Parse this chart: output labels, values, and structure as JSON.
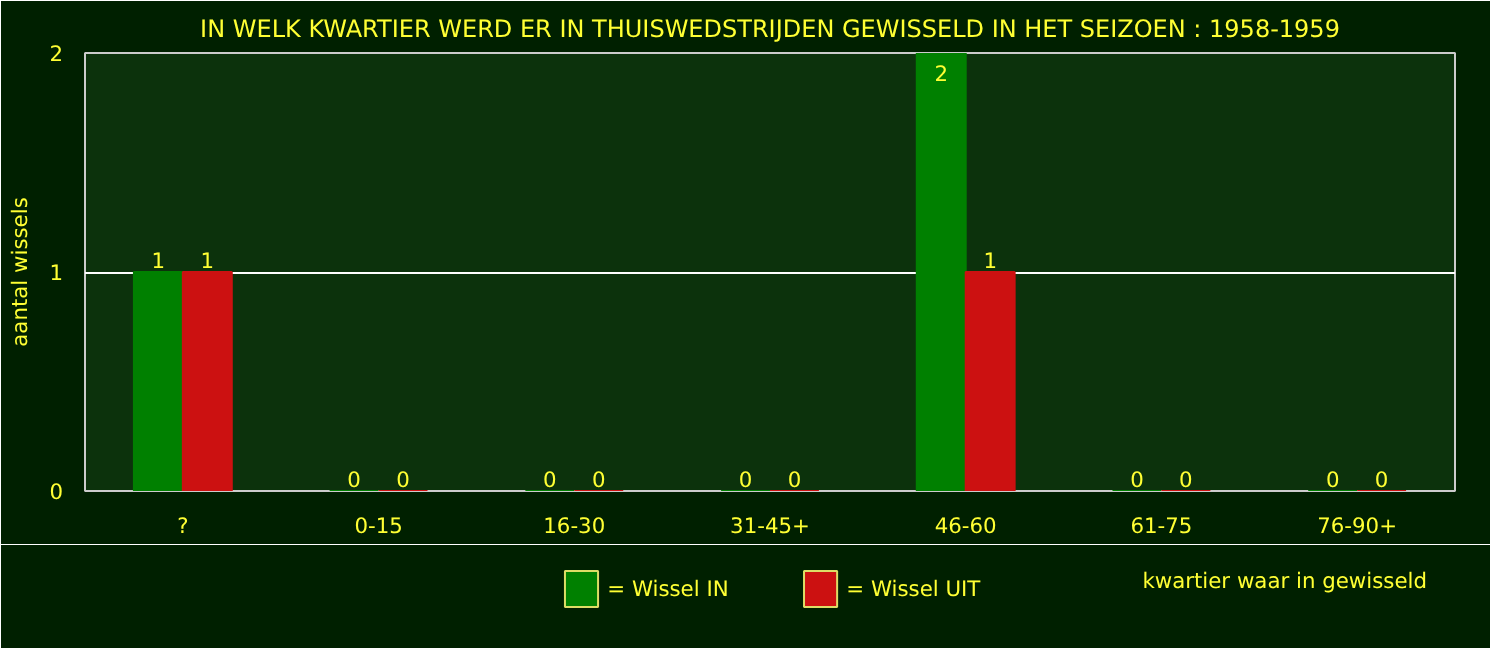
{
  "chart_data": {
    "type": "bar",
    "title": "IN WELK KWARTIER WERD ER IN THUISWEDSTRIJDEN GEWISSELD IN HET SEIZOEN : 1958-1959",
    "xlabel": "kwartier waar in gewisseld",
    "ylabel": "aantal wissels",
    "categories": [
      "?",
      "0-15",
      "16-30",
      "31-45+",
      "46-60",
      "61-75",
      "76-90+"
    ],
    "series": [
      {
        "name": "= Wissel IN",
        "color": "#008000",
        "values": [
          1,
          0,
          0,
          0,
          2,
          0,
          0
        ]
      },
      {
        "name": "= Wissel UIT",
        "color": "#cc1111",
        "values": [
          1,
          0,
          0,
          0,
          1,
          0,
          0
        ]
      }
    ],
    "ylim": [
      0,
      2
    ],
    "yticks": [
      0,
      1,
      2
    ],
    "grid": "y",
    "legend": "bottom",
    "data_labels": true
  }
}
